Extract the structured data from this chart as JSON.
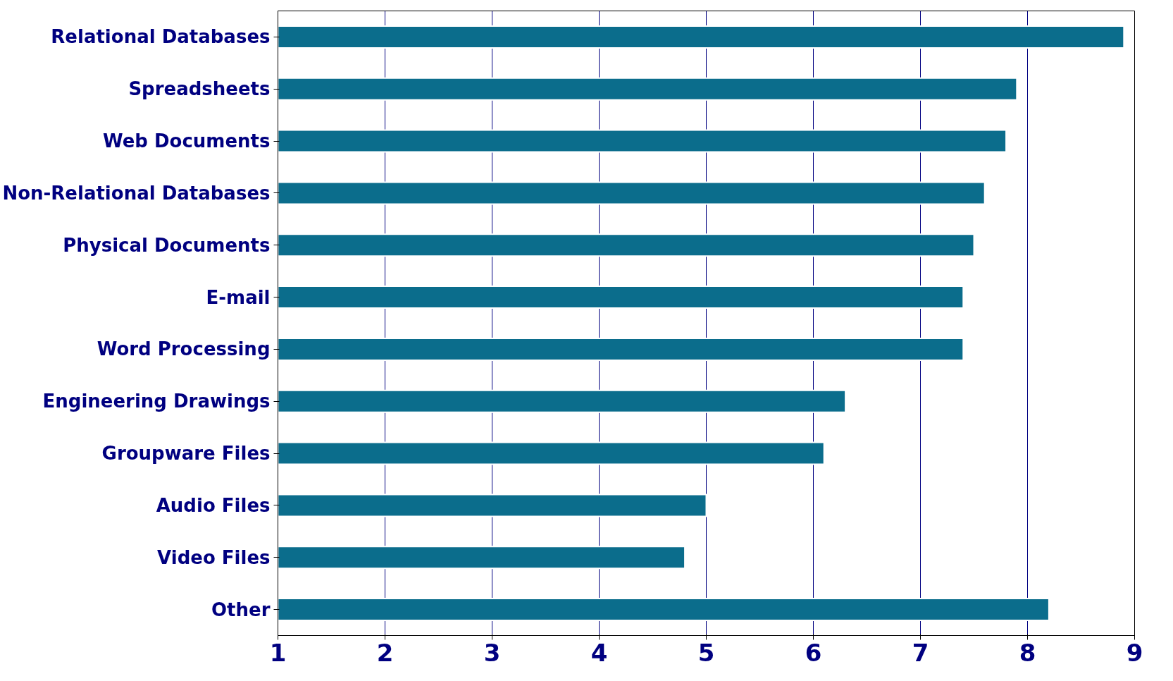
{
  "chart_data": {
    "type": "bar",
    "orientation": "horizontal",
    "categories": [
      "Relational Databases",
      "Spreadsheets",
      "Web Documents",
      "Non-Relational Databases",
      "Physical Documents",
      "E-mail",
      "Word Processing",
      "Engineering Drawings",
      "Groupware Files",
      "Audio Files",
      "Video Files",
      "Other"
    ],
    "values": [
      8.9,
      7.9,
      7.8,
      7.6,
      7.5,
      7.4,
      7.4,
      6.3,
      6.1,
      5.0,
      4.8,
      8.2
    ],
    "color": "#0b6d8c",
    "xlim": [
      1,
      9
    ],
    "xticks": [
      1,
      2,
      3,
      4,
      5,
      6,
      7,
      8,
      9
    ],
    "grid": "x"
  }
}
